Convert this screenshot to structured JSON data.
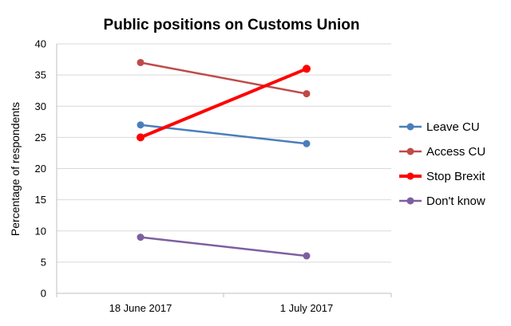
{
  "chart_data": {
    "type": "line",
    "title": "Public positions on Customs Union",
    "xlabel": "",
    "ylabel": "Percentage of respondents",
    "categories": [
      "18 June 2017",
      "1 July 2017"
    ],
    "ylim": [
      0,
      40
    ],
    "yticks": [
      0,
      5,
      10,
      15,
      20,
      25,
      30,
      35,
      40
    ],
    "grid": true,
    "legend_position": "right",
    "series": [
      {
        "name": "Leave CU",
        "values": [
          27,
          24
        ],
        "color": "#4a7ebb",
        "linewidth": "normal"
      },
      {
        "name": "Access CU",
        "values": [
          37,
          32
        ],
        "color": "#be4b48",
        "linewidth": "normal"
      },
      {
        "name": "Stop Brexit",
        "values": [
          25,
          36
        ],
        "color": "#ff0000",
        "linewidth": "bold"
      },
      {
        "name": "Don't know",
        "values": [
          9,
          6
        ],
        "color": "#7d5fa0",
        "linewidth": "normal"
      }
    ]
  }
}
